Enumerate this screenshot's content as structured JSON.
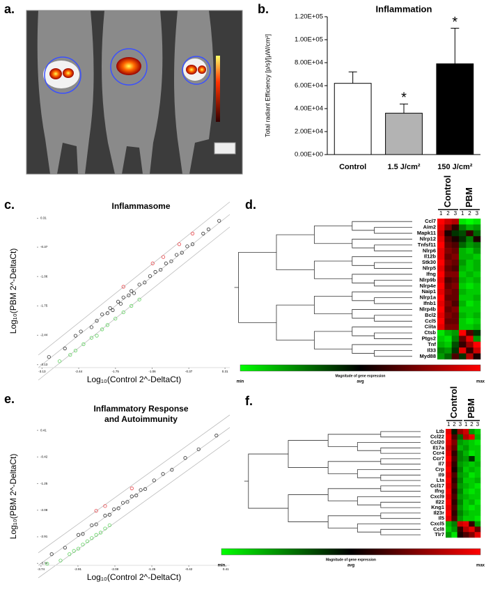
{
  "image_panel": {
    "label": "a."
  },
  "chart_data": [
    {
      "type": "bar",
      "panel": "b.",
      "title": "Inflammation",
      "ylabel": "Total radiant Efficiency [p/s]/[µW/cm²]",
      "categories": [
        "Control",
        "1.5 J/cm²",
        "150 J/cm²"
      ],
      "values": [
        62000,
        36000,
        79000
      ],
      "errors": [
        10000,
        8000,
        31000
      ],
      "colors": [
        "#ffffff",
        "#b3b3b3",
        "#000000"
      ],
      "annotations": [
        null,
        "*",
        "*"
      ],
      "ylim": [
        0,
        120000
      ],
      "yticks": [
        {
          "value": 0,
          "label": "0.00E+00"
        },
        {
          "value": 20000,
          "label": "2.00E+04"
        },
        {
          "value": 40000,
          "label": "4.00E+04"
        },
        {
          "value": 60000,
          "label": "6.00E+04"
        },
        {
          "value": 80000,
          "label": "8.00E+04"
        },
        {
          "value": 100000,
          "label": "1.00E+05"
        },
        {
          "value": 120000,
          "label": "1.20E+05"
        }
      ]
    },
    {
      "type": "scatter",
      "panel": "c.",
      "title": "Inflammasome",
      "xlabel": "Log₁₀(Control 2^-DeltaCt)",
      "ylabel": "Log₁₀(PBM 2^-DeltaCt)",
      "xlim": [
        -3.2,
        0.4
      ],
      "ylim": [
        -3.2,
        0.4
      ],
      "xticks": [
        -3.13,
        -2.44,
        -1.75,
        -1.06,
        -0.37,
        0.31
      ],
      "yticks": [
        -3.13,
        -2.44,
        -1.75,
        -1.06,
        -0.37,
        0.31
      ],
      "series": [
        {
          "color": "#333333",
          "x": [
            -3.0,
            -2.7,
            -2.5,
            -2.4,
            -2.2,
            -2.1,
            -2.0,
            -1.9,
            -1.85,
            -1.8,
            -1.7,
            -1.65,
            -1.6,
            -1.5,
            -1.45,
            -1.4,
            -1.3,
            -1.2,
            -1.1,
            -1.0,
            -0.9,
            -0.8,
            -0.7,
            -0.6,
            -0.5,
            -0.4,
            -0.3,
            -0.1,
            0.0,
            0.2
          ],
          "values": [
            -2.95,
            -2.75,
            -2.45,
            -2.35,
            -2.25,
            -2.1,
            -1.95,
            -1.92,
            -1.8,
            -1.85,
            -1.65,
            -1.7,
            -1.55,
            -1.5,
            -1.4,
            -1.45,
            -1.25,
            -1.2,
            -1.05,
            -0.95,
            -0.9,
            -0.75,
            -0.7,
            -0.55,
            -0.5,
            -0.35,
            -0.3,
            -0.05,
            0.05,
            0.25
          ]
        },
        {
          "color": "#e8474c",
          "x": [
            -1.6,
            -1.05,
            -0.85,
            -0.55,
            -0.3
          ],
          "values": [
            -1.3,
            -0.75,
            -0.6,
            -0.3,
            -0.05
          ]
        },
        {
          "color": "#5ed35e",
          "x": [
            -2.8,
            -2.6,
            -2.5,
            -2.35,
            -2.2,
            -2.1,
            -2.0,
            -1.9,
            -1.75,
            -1.6,
            -1.45,
            -1.3
          ],
          "values": [
            -3.05,
            -2.9,
            -2.8,
            -2.65,
            -2.5,
            -2.45,
            -2.3,
            -2.2,
            -2.05,
            -1.9,
            -1.75,
            -1.6
          ]
        }
      ]
    },
    {
      "type": "heatmap",
      "panel": "d.",
      "groups": [
        "Control",
        "PBM"
      ],
      "columns": [
        "1",
        "2",
        "3",
        "1",
        "2",
        "3"
      ],
      "rows": [
        "Ccl7",
        "Aim2",
        "Mapk11",
        "Nlrp12",
        "Tnfsf11",
        "Nlrp6",
        "Il12b",
        "Stk30",
        "Nlrp5",
        "Ifng",
        "Nlrp9b",
        "Nlrp4e",
        "Naip1",
        "Nlrp1a",
        "Ifnb1",
        "Nlrp4b",
        "Bcl2",
        "Ccl5",
        "Ciita",
        "Ctsb",
        "Ptgs2",
        "Tnf",
        "Il33",
        "Myd88"
      ],
      "values": [
        [
          1.0,
          0.8,
          0.7,
          -0.9,
          -1.0,
          -0.9
        ],
        [
          0.9,
          0.5,
          0.2,
          -0.5,
          -0.7,
          -0.6
        ],
        [
          0.8,
          0.1,
          -0.2,
          -0.3,
          0.2,
          -0.4
        ],
        [
          0.9,
          0.3,
          0.1,
          -0.2,
          -0.5,
          0.1
        ],
        [
          1.0,
          0.4,
          0.3,
          -0.4,
          -0.6,
          -0.5
        ],
        [
          0.9,
          0.5,
          0.4,
          -0.7,
          -0.8,
          -0.6
        ],
        [
          0.9,
          0.4,
          0.5,
          -0.7,
          -0.7,
          -0.8
        ],
        [
          1.0,
          0.5,
          0.4,
          -0.6,
          -0.8,
          -0.7
        ],
        [
          0.9,
          0.4,
          0.3,
          -0.7,
          -0.8,
          -0.7
        ],
        [
          1.0,
          0.5,
          0.5,
          -0.8,
          -0.7,
          -0.8
        ],
        [
          0.9,
          0.3,
          0.4,
          -0.7,
          -0.8,
          -0.7
        ],
        [
          1.0,
          0.4,
          0.5,
          -0.8,
          -0.9,
          -0.8
        ],
        [
          0.9,
          0.5,
          0.4,
          -0.7,
          -0.8,
          -0.8
        ],
        [
          1.0,
          0.4,
          0.4,
          -0.8,
          -0.8,
          -0.7
        ],
        [
          0.9,
          0.5,
          0.3,
          -0.7,
          -0.9,
          -0.8
        ],
        [
          1.0,
          0.4,
          0.5,
          -0.8,
          -0.8,
          -0.8
        ],
        [
          0.9,
          0.5,
          0.4,
          -0.7,
          -0.8,
          -0.7
        ],
        [
          1.0,
          0.4,
          0.4,
          -0.8,
          -0.9,
          -0.8
        ],
        [
          0.9,
          0.5,
          0.5,
          -0.8,
          -0.8,
          -0.7
        ],
        [
          -0.9,
          -0.7,
          -0.6,
          1.0,
          0.3,
          -0.2
        ],
        [
          -0.8,
          -0.9,
          -0.5,
          0.4,
          0.9,
          -0.6
        ],
        [
          -0.7,
          -0.8,
          -0.3,
          0.2,
          0.6,
          1.0
        ],
        [
          -0.5,
          -0.6,
          -0.2,
          0.9,
          0.2,
          0.8
        ],
        [
          -0.6,
          -0.4,
          0.3,
          -0.2,
          0.7,
          0.1
        ]
      ],
      "colorbar": {
        "title": "Magnitude of gene expression",
        "labels": [
          "min",
          "avg",
          "max"
        ]
      }
    },
    {
      "type": "scatter",
      "panel": "e.",
      "title": "Inflammatory Response",
      "subtitle": "and Autoimmunity",
      "xlabel": "Log₁₀(Control 2^-DeltaCt)",
      "ylabel": "Log₁₀(PBM 2^-DeltaCt)",
      "xlim": [
        -3.8,
        0.5
      ],
      "ylim": [
        -3.8,
        0.5
      ],
      "xticks": [
        -3.74,
        -2.91,
        -2.08,
        -1.25,
        -0.42,
        0.41
      ],
      "yticks": [
        -3.74,
        -2.91,
        -2.08,
        -1.25,
        -0.42,
        0.41
      ],
      "series": [
        {
          "color": "#333333",
          "x": [
            -3.5,
            -3.2,
            -2.9,
            -2.8,
            -2.6,
            -2.5,
            -2.3,
            -2.2,
            -2.1,
            -2.0,
            -1.9,
            -1.8,
            -1.7,
            -1.6,
            -1.5,
            -1.4,
            -1.2,
            -1.0,
            -0.8,
            -0.5,
            -0.2,
            0.2
          ],
          "values": [
            -3.45,
            -3.25,
            -2.85,
            -2.82,
            -2.55,
            -2.52,
            -2.25,
            -2.22,
            -2.05,
            -2.02,
            -1.85,
            -1.82,
            -1.65,
            -1.62,
            -1.45,
            -1.42,
            -1.15,
            -0.95,
            -0.82,
            -0.45,
            -0.18,
            0.25
          ]
        },
        {
          "color": "#e8474c",
          "x": [
            -2.5,
            -2.3,
            -1.7
          ],
          "values": [
            -2.1,
            -1.95,
            -1.4
          ]
        },
        {
          "color": "#5ed35e",
          "x": [
            -3.6,
            -3.3,
            -3.1,
            -3.0,
            -2.9,
            -2.8,
            -2.7,
            -2.6,
            -2.5,
            -2.4,
            -2.3,
            -2.2
          ],
          "values": [
            -3.75,
            -3.65,
            -3.45,
            -3.35,
            -3.28,
            -3.15,
            -3.05,
            -2.95,
            -2.85,
            -2.78,
            -2.65,
            -2.55
          ]
        }
      ]
    },
    {
      "type": "heatmap",
      "panel": "f.",
      "groups": [
        "Control",
        "PBM"
      ],
      "columns": [
        "1",
        "2",
        "3",
        "1",
        "2",
        "3"
      ],
      "rows": [
        "Ltb",
        "Ccl22",
        "Ccl20",
        "Il17a",
        "Ccr4",
        "Ccr7",
        "Il7",
        "Crp",
        "Il9",
        "Lta",
        "Ccl17",
        "Ifng",
        "Cxcl9",
        "Il22",
        "Kng1",
        "Il23r",
        "Il5",
        "Cxcl5",
        "Ccl8",
        "Tlr7"
      ],
      "values": [
        [
          0.9,
          -0.1,
          0.6,
          0.8,
          -0.6,
          -0.8
        ],
        [
          1.0,
          0.3,
          -0.4,
          0.7,
          0.9,
          -0.7
        ],
        [
          0.9,
          0.5,
          -0.6,
          -0.7,
          -0.8,
          -0.9
        ],
        [
          0.8,
          0.4,
          -0.7,
          -0.6,
          -0.8,
          -0.8
        ],
        [
          0.9,
          0.2,
          -0.5,
          -0.7,
          -0.9,
          -0.8
        ],
        [
          1.0,
          0.3,
          -0.5,
          -0.6,
          -0.2,
          -0.8
        ],
        [
          0.9,
          0.2,
          -0.6,
          -0.7,
          -0.8,
          -0.7
        ],
        [
          1.0,
          0.1,
          -0.5,
          -0.8,
          -0.7,
          -0.8
        ],
        [
          0.9,
          0.3,
          -0.6,
          -0.7,
          -0.9,
          -0.8
        ],
        [
          1.0,
          0.2,
          -0.5,
          -0.8,
          -0.8,
          -0.7
        ],
        [
          0.9,
          0.3,
          -0.6,
          -0.7,
          -0.8,
          -0.9
        ],
        [
          1.0,
          0.2,
          -0.5,
          -0.8,
          -0.9,
          -0.8
        ],
        [
          0.9,
          0.3,
          -0.6,
          -0.7,
          -0.8,
          -0.8
        ],
        [
          1.0,
          0.2,
          -0.5,
          -0.8,
          -0.7,
          -0.9
        ],
        [
          0.9,
          0.3,
          -0.6,
          -0.8,
          -0.9,
          -0.8
        ],
        [
          1.0,
          0.2,
          -0.5,
          -0.7,
          -0.8,
          -0.8
        ],
        [
          0.9,
          0.3,
          -0.6,
          -0.8,
          -0.8,
          -0.9
        ],
        [
          -0.7,
          -0.5,
          0.8,
          0.9,
          0.2,
          -0.6
        ],
        [
          -0.8,
          -0.6,
          0.2,
          0.7,
          0.9,
          0.4
        ],
        [
          -0.6,
          -0.9,
          0.1,
          0.3,
          0.5,
          0.9
        ]
      ],
      "colorbar": {
        "title": "Magnitude of gene expression",
        "labels": [
          "min",
          "avg",
          "max"
        ]
      }
    }
  ]
}
